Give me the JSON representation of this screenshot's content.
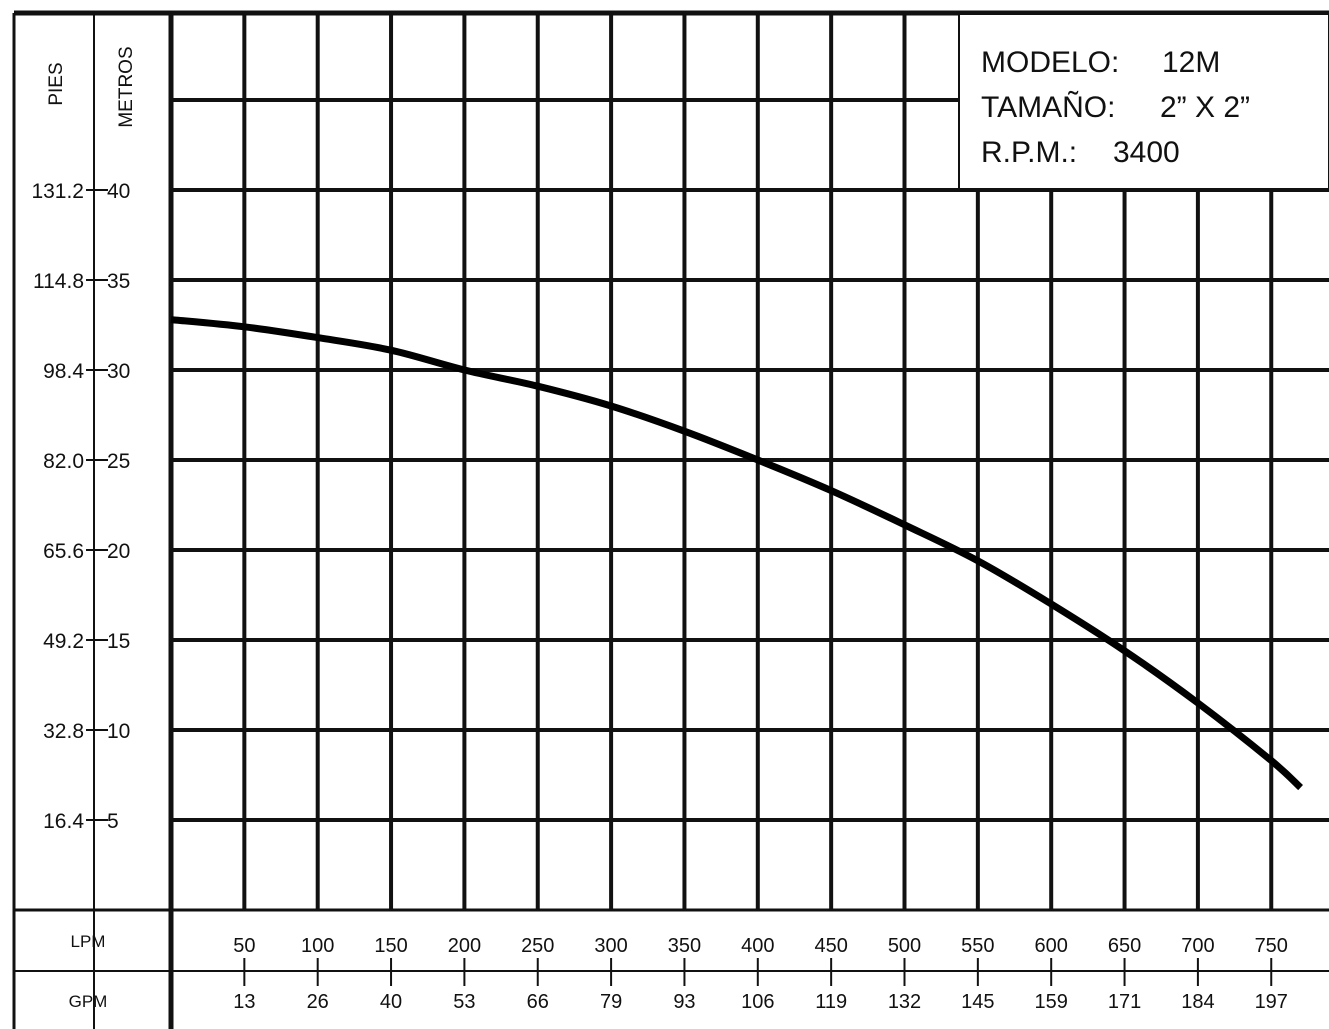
{
  "info_box": {
    "model_label": "MODELO:",
    "model_value": "12M",
    "size_label": "TAMAÑO:",
    "size_value": "2” X 2”",
    "rpm_label": "R.P.M.:",
    "rpm_value": "3400"
  },
  "chart_data": {
    "type": "line",
    "title": "",
    "ylabel_feet": "PIES",
    "ylabel_meters": "METROS",
    "xlabel_lpm": "LPM",
    "xlabel_gpm": "GPM",
    "y_meters_ticks": [
      "40",
      "35",
      "30",
      "25",
      "20",
      "15",
      "10",
      "5"
    ],
    "y_feet_ticks": [
      "131.2",
      "114.8",
      "98.4",
      "82.0",
      "65.6",
      "49.2",
      "32.8",
      "16.4"
    ],
    "x_lpm_ticks": [
      "50",
      "100",
      "150",
      "200",
      "250",
      "300",
      "350",
      "400",
      "450",
      "500",
      "550",
      "600",
      "650",
      "700",
      "750"
    ],
    "x_gpm_ticks": [
      "13",
      "26",
      "40",
      "53",
      "66",
      "79",
      "93",
      "106",
      "119",
      "132",
      "145",
      "159",
      "171",
      "184",
      "197"
    ],
    "xlim": [
      0,
      750
    ],
    "ylim": [
      0,
      50
    ],
    "grid": true,
    "series": [
      {
        "x": [
          0,
          50,
          100,
          150,
          200,
          250,
          300,
          350,
          400,
          450,
          500,
          550,
          600,
          650,
          700,
          750,
          770
        ],
        "y": [
          32.8,
          32.4,
          31.8,
          31.1,
          30.0,
          29.1,
          28.0,
          26.6,
          25.0,
          23.3,
          21.4,
          19.4,
          17.0,
          14.4,
          11.5,
          8.3,
          6.8
        ]
      }
    ]
  }
}
